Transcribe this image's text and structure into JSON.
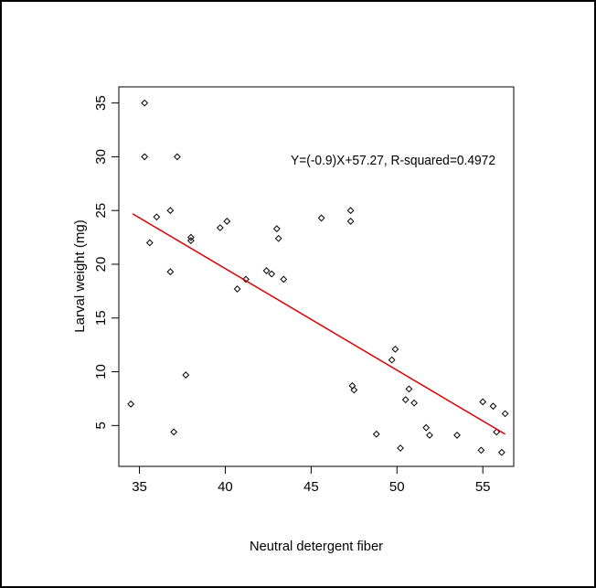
{
  "chart_data": {
    "type": "scatter",
    "title": "",
    "xlabel": "Neutral detergent fiber",
    "ylabel": "Larval weight (mg)",
    "xlim": [
      33.8,
      56.8
    ],
    "ylim": [
      1.2,
      36.5
    ],
    "xticks": [
      35,
      40,
      45,
      50,
      55
    ],
    "yticks": [
      5,
      10,
      15,
      20,
      25,
      30,
      35
    ],
    "grid": false,
    "annotation": "Y=(-0.9)X+57.27, R-squared=0.4972",
    "regression_line": {
      "x": [
        34.6,
        56.3
      ],
      "y": [
        24.7,
        4.2
      ],
      "color": "#dd0000"
    },
    "points_color": "#000000",
    "series": [
      {
        "x": [
          34.5,
          35.3,
          35.3,
          35.6,
          36.0,
          36.8,
          36.8,
          37.0,
          37.2,
          37.7,
          38.0,
          38.0,
          39.7,
          40.1,
          40.7,
          41.2,
          42.4,
          42.7,
          43.0,
          43.1,
          43.4,
          45.6,
          47.3,
          47.3,
          47.4,
          47.5,
          48.8,
          49.7,
          49.9,
          50.2,
          50.5,
          50.7,
          51.0,
          51.7,
          51.9,
          53.5,
          54.9,
          55.0,
          55.6,
          55.8,
          56.1,
          56.3
        ],
        "y": [
          7.0,
          35.0,
          30.0,
          22.0,
          24.4,
          25.0,
          19.3,
          4.4,
          30.0,
          9.7,
          22.5,
          22.2,
          23.4,
          24.0,
          17.7,
          18.6,
          19.4,
          19.1,
          23.3,
          22.4,
          18.6,
          24.3,
          25.0,
          24.0,
          8.7,
          8.3,
          4.2,
          11.1,
          12.1,
          2.9,
          7.4,
          8.4,
          7.1,
          4.8,
          4.1,
          4.1,
          2.7,
          7.2,
          6.8,
          4.4,
          2.5,
          6.1
        ]
      }
    ]
  }
}
